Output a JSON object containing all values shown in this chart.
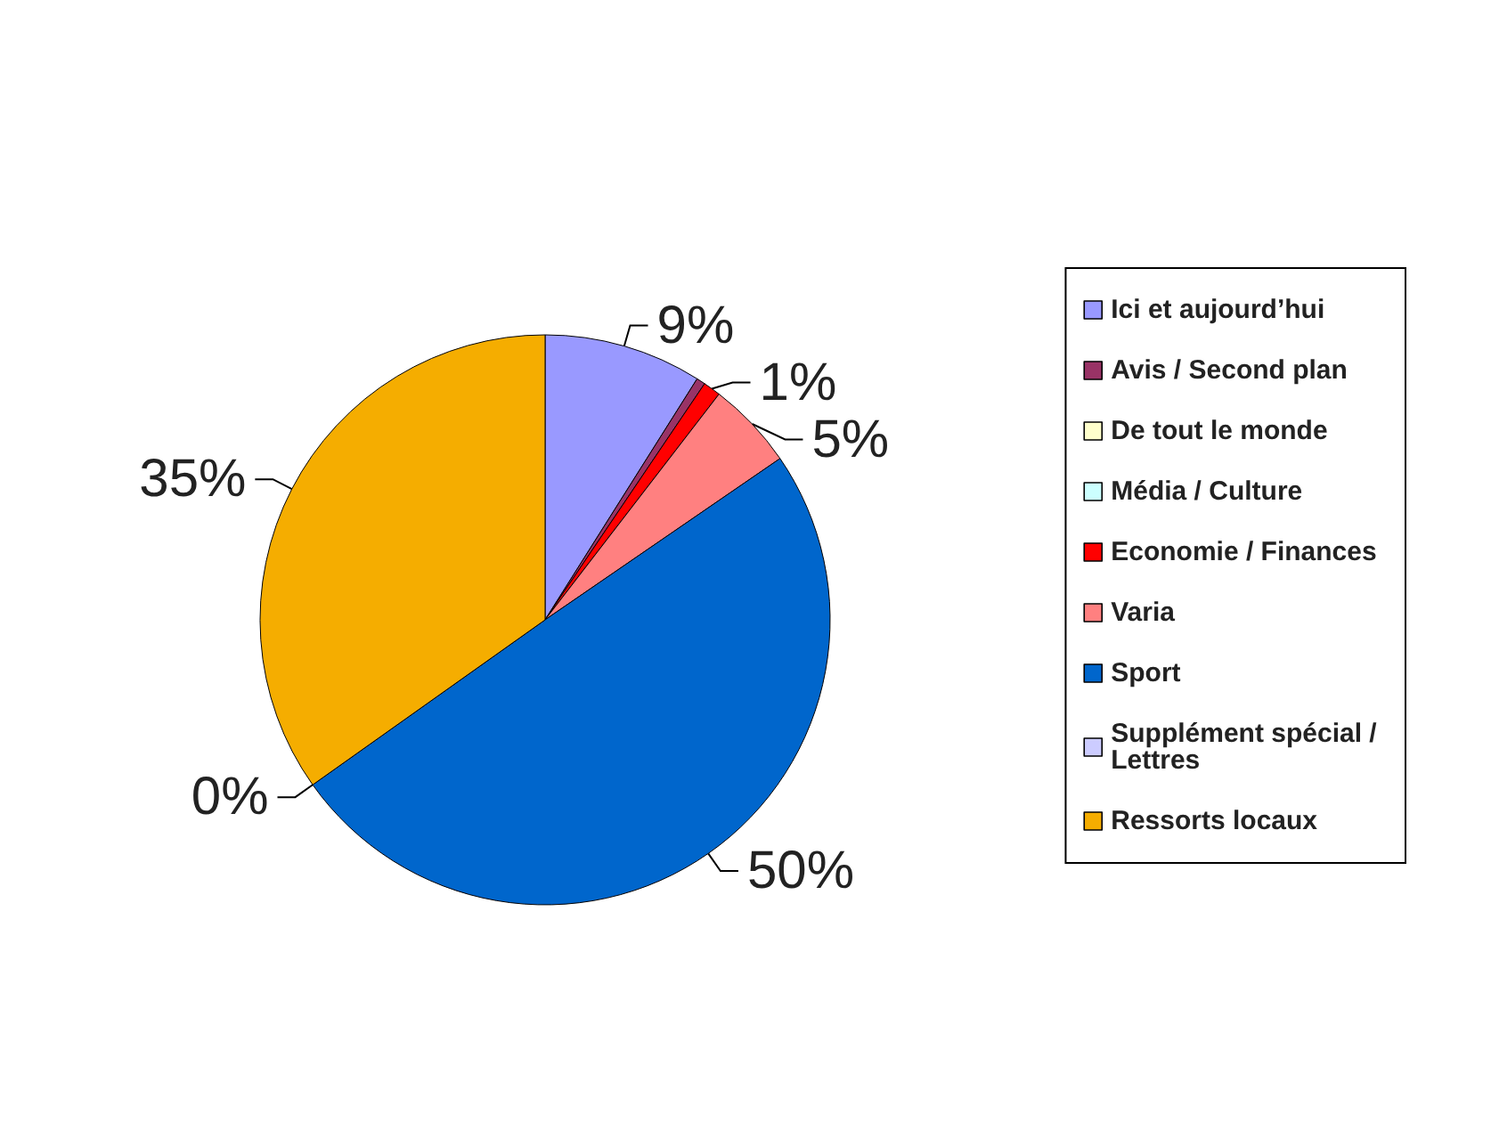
{
  "chart_data": {
    "type": "pie",
    "categories": [
      "Ici et aujourd’hui",
      "Avis / Second plan",
      "De tout le monde",
      "Média / Culture",
      "Economie / Finances",
      "Varia",
      "Sport",
      "Supplément spécial / Lettres",
      "Ressorts locaux"
    ],
    "values": [
      9,
      0.5,
      0,
      0,
      1,
      5,
      50,
      0,
      35
    ],
    "value_labels": [
      "9%",
      null,
      null,
      null,
      "1%",
      "5%",
      "50%",
      "0%",
      "35%"
    ],
    "colors": [
      "#9999ff",
      "#993366",
      "#ffffcc",
      "#ccffff",
      "#ff0000",
      "#ff8080",
      "#0066cc",
      "#ccccff",
      "#f5ad00"
    ],
    "legend": "right"
  }
}
